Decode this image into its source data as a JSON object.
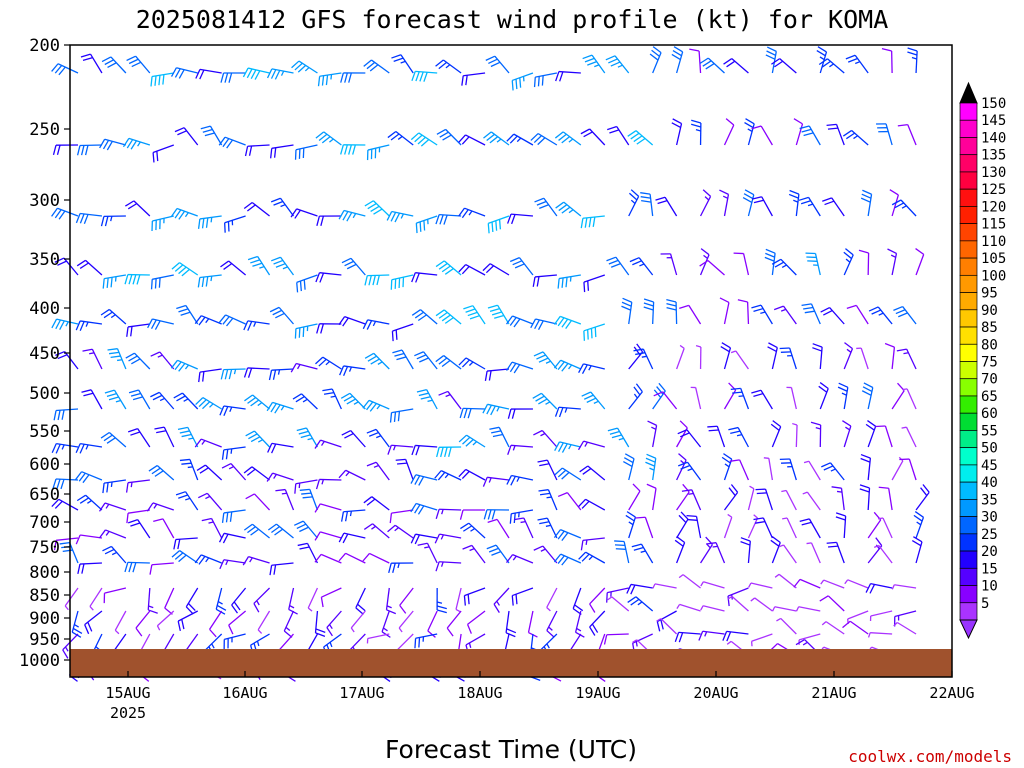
{
  "chart_data": {
    "type": "wind-barb-profile",
    "title": "2025081412 GFS forecast wind profile (kt) for KOMA",
    "xlabel": "Forecast Time (UTC)",
    "credit": "coolwx.com/models",
    "y_ticks": [
      "200",
      "250",
      "300",
      "350",
      "400",
      "450",
      "500",
      "550",
      "600",
      "650",
      "700",
      "750",
      "800",
      "850",
      "900",
      "950",
      "1000"
    ],
    "x_ticks": [
      {
        "label": "15AUG",
        "sublabel": "2025"
      },
      {
        "label": "16AUG",
        "sublabel": ""
      },
      {
        "label": "17AUG",
        "sublabel": ""
      },
      {
        "label": "18AUG",
        "sublabel": ""
      },
      {
        "label": "19AUG",
        "sublabel": ""
      },
      {
        "label": "20AUG",
        "sublabel": ""
      },
      {
        "label": "21AUG",
        "sublabel": ""
      },
      {
        "label": "22AUG",
        "sublabel": ""
      }
    ],
    "colorbar": {
      "labels": [
        "150",
        "145",
        "140",
        "135",
        "130",
        "125",
        "120",
        "115",
        "110",
        "105",
        "100",
        "95",
        "90",
        "85",
        "80",
        "75",
        "70",
        "65",
        "60",
        "55",
        "50",
        "45",
        "40",
        "35",
        "30",
        "25",
        "20",
        "15",
        "10",
        "5"
      ],
      "colors": [
        "#ff00ff",
        "#ff00cc",
        "#ff0099",
        "#ff0066",
        "#ff0040",
        "#ff1010",
        "#ff2000",
        "#ff4400",
        "#ff6600",
        "#ff7f00",
        "#ff9900",
        "#ffaa00",
        "#ffc800",
        "#ffe000",
        "#ffff00",
        "#ccff00",
        "#88ff00",
        "#33ee00",
        "#00dd33",
        "#00ee88",
        "#00ffcc",
        "#00eeee",
        "#00bbff",
        "#0099ff",
        "#0066ff",
        "#0033ff",
        "#2200ff",
        "#5500ff",
        "#8800ff",
        "#aa33ff"
      ]
    },
    "ground_color": "#a0522d",
    "levels_hPa": [
      200,
      250,
      300,
      350,
      400,
      450,
      500,
      550,
      600,
      650,
      700,
      750,
      800,
      850,
      900,
      950
    ],
    "profiles": [
      {
        "levels": [
          200,
          250
        ],
        "speed": 35,
        "dir": 290
      },
      {
        "levels": [
          300,
          350,
          400
        ],
        "speed": 35,
        "dir": 290
      },
      {
        "levels": [
          450,
          500,
          550,
          600
        ],
        "speed": 30,
        "dir": 300
      },
      {
        "levels": [
          650,
          700,
          750
        ],
        "speed": 25,
        "dir": 300
      },
      {
        "levels": [
          800,
          850,
          900,
          950
        ],
        "speed": 20,
        "dir": 220
      }
    ]
  }
}
